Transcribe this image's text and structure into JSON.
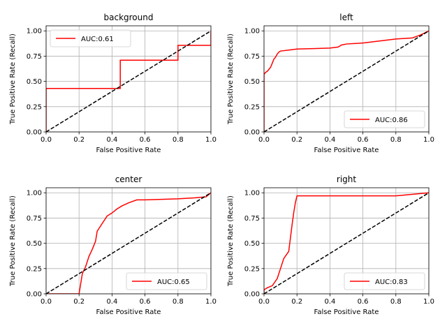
{
  "chart_data": [
    {
      "type": "line",
      "title": "background",
      "xlabel": "False Positive Rate",
      "ylabel": "True Positive Rate (Recall)",
      "xlim": [
        0,
        1
      ],
      "ylim": [
        0,
        1.05
      ],
      "xticks": [
        "0.0",
        "0.2",
        "0.4",
        "0.6",
        "0.8",
        "1.0"
      ],
      "yticks": [
        "0.00",
        "0.25",
        "0.50",
        "0.75",
        "1.00"
      ],
      "grid": true,
      "legend_position": "upper-left",
      "series": [
        {
          "name": "AUC:0.61",
          "color": "#ff0000",
          "style": "solid",
          "x": [
            0,
            0,
            0.45,
            0.45,
            0.8,
            0.8,
            1.0,
            1.0
          ],
          "y": [
            0,
            0.43,
            0.43,
            0.71,
            0.71,
            0.857,
            0.857,
            1.0
          ]
        },
        {
          "name": "",
          "color": "#000000",
          "style": "dashed",
          "x": [
            0,
            1
          ],
          "y": [
            0,
            1
          ]
        }
      ]
    },
    {
      "type": "line",
      "title": "left",
      "xlabel": "False Positive Rate",
      "ylabel": "True Positive Rate (Recall)",
      "xlim": [
        0,
        1
      ],
      "ylim": [
        0,
        1.05
      ],
      "xticks": [
        "0.0",
        "0.2",
        "0.4",
        "0.6",
        "0.8",
        "1.0"
      ],
      "yticks": [
        "0.00",
        "0.25",
        "0.50",
        "0.75",
        "1.00"
      ],
      "grid": true,
      "legend_position": "lower-right",
      "series": [
        {
          "name": "AUC:0.86",
          "color": "#ff0000",
          "style": "solid",
          "x": [
            0,
            0.0,
            0.01,
            0.02,
            0.03,
            0.04,
            0.05,
            0.06,
            0.07,
            0.08,
            0.09,
            0.1,
            0.15,
            0.2,
            0.3,
            0.4,
            0.45,
            0.47,
            0.5,
            0.6,
            0.7,
            0.8,
            0.9,
            0.95,
            1.0
          ],
          "y": [
            0,
            0.57,
            0.59,
            0.6,
            0.62,
            0.64,
            0.68,
            0.72,
            0.74,
            0.77,
            0.79,
            0.8,
            0.81,
            0.82,
            0.825,
            0.83,
            0.84,
            0.86,
            0.87,
            0.88,
            0.9,
            0.92,
            0.93,
            0.96,
            1.0
          ]
        },
        {
          "name": "",
          "color": "#000000",
          "style": "dashed",
          "x": [
            0,
            1
          ],
          "y": [
            0,
            1
          ]
        }
      ]
    },
    {
      "type": "line",
      "title": "center",
      "xlabel": "False Positive Rate",
      "ylabel": "True Positive Rate (Recall)",
      "xlim": [
        0,
        1
      ],
      "ylim": [
        0,
        1.05
      ],
      "xticks": [
        "0.0",
        "0.2",
        "0.4",
        "0.6",
        "0.8",
        "1.0"
      ],
      "yticks": [
        "0.00",
        "0.25",
        "0.50",
        "0.75",
        "1.00"
      ],
      "grid": true,
      "legend_position": "lower-right",
      "series": [
        {
          "name": "AUC:0.65",
          "color": "#ff0000",
          "style": "solid",
          "x": [
            0,
            0.2,
            0.21,
            0.22,
            0.24,
            0.26,
            0.28,
            0.3,
            0.31,
            0.33,
            0.35,
            0.37,
            0.4,
            0.43,
            0.46,
            0.5,
            0.55,
            0.6,
            0.7,
            0.8,
            0.9,
            0.97,
            1.0
          ],
          "y": [
            0,
            0.0,
            0.1,
            0.2,
            0.27,
            0.37,
            0.44,
            0.52,
            0.62,
            0.67,
            0.72,
            0.77,
            0.8,
            0.84,
            0.87,
            0.9,
            0.93,
            0.93,
            0.935,
            0.94,
            0.95,
            0.96,
            1.0
          ]
        },
        {
          "name": "",
          "color": "#000000",
          "style": "dashed",
          "x": [
            0,
            1
          ],
          "y": [
            0,
            1
          ]
        }
      ]
    },
    {
      "type": "line",
      "title": "right",
      "xlabel": "False Positive Rate",
      "ylabel": "True Positive Rate (Recall)",
      "xlim": [
        0,
        1
      ],
      "ylim": [
        0,
        1.05
      ],
      "xticks": [
        "0.0",
        "0.2",
        "0.4",
        "0.6",
        "0.8",
        "1.0"
      ],
      "yticks": [
        "0.00",
        "0.25",
        "0.50",
        "0.75",
        "1.00"
      ],
      "grid": true,
      "legend_position": "lower-right",
      "series": [
        {
          "name": "AUC:0.83",
          "color": "#ff0000",
          "style": "solid",
          "x": [
            0,
            0.0,
            0.02,
            0.05,
            0.08,
            0.1,
            0.12,
            0.15,
            0.16,
            0.17,
            0.18,
            0.19,
            0.2,
            0.21,
            0.5,
            0.8,
            1.0
          ],
          "y": [
            0,
            0.04,
            0.06,
            0.08,
            0.15,
            0.25,
            0.35,
            0.42,
            0.55,
            0.68,
            0.8,
            0.9,
            0.97,
            0.97,
            0.97,
            0.97,
            1.0
          ]
        },
        {
          "name": "",
          "color": "#000000",
          "style": "dashed",
          "x": [
            0,
            1
          ],
          "y": [
            0,
            1
          ]
        }
      ]
    }
  ]
}
